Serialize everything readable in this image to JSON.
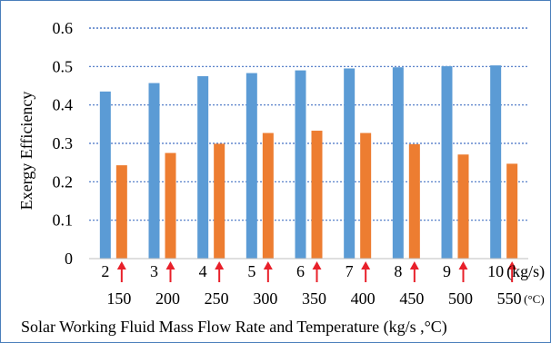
{
  "chart_data": {
    "type": "bar",
    "title": "",
    "ylabel": "Exergy Efficiency",
    "xlabel": "Solar Working Fluid Mass Flow Rate and Temperature (kg/s ,°C)",
    "ylim": [
      0,
      0.6
    ],
    "yticks": [
      "0",
      "0.1",
      "0.2",
      "0.3",
      "0.4",
      "0.5",
      "0.6"
    ],
    "grid": "horizontal-dotted",
    "legend": "none",
    "categories": [
      "2",
      "3",
      "4",
      "5",
      "6",
      "7",
      "8",
      "9",
      "10"
    ],
    "temperatures": [
      "150",
      "200",
      "250",
      "300",
      "350",
      "400",
      "450",
      "500",
      "550"
    ],
    "flow_unit": "(kg/s)",
    "temp_unit": "(°C)",
    "temp_markers": "red-arrow",
    "series": [
      {
        "values": [
          0.435,
          0.457,
          0.475,
          0.483,
          0.49,
          0.495,
          0.498,
          0.501,
          0.503
        ],
        "color": "#5b9bd5"
      },
      {
        "values": [
          0.243,
          0.275,
          0.299,
          0.327,
          0.333,
          0.327,
          0.298,
          0.271,
          0.247
        ],
        "color": "#ed7d31"
      }
    ],
    "grid_color": "#4472c4",
    "arrow_color": "#e8202a",
    "frame_color": "#4a7ebb"
  }
}
